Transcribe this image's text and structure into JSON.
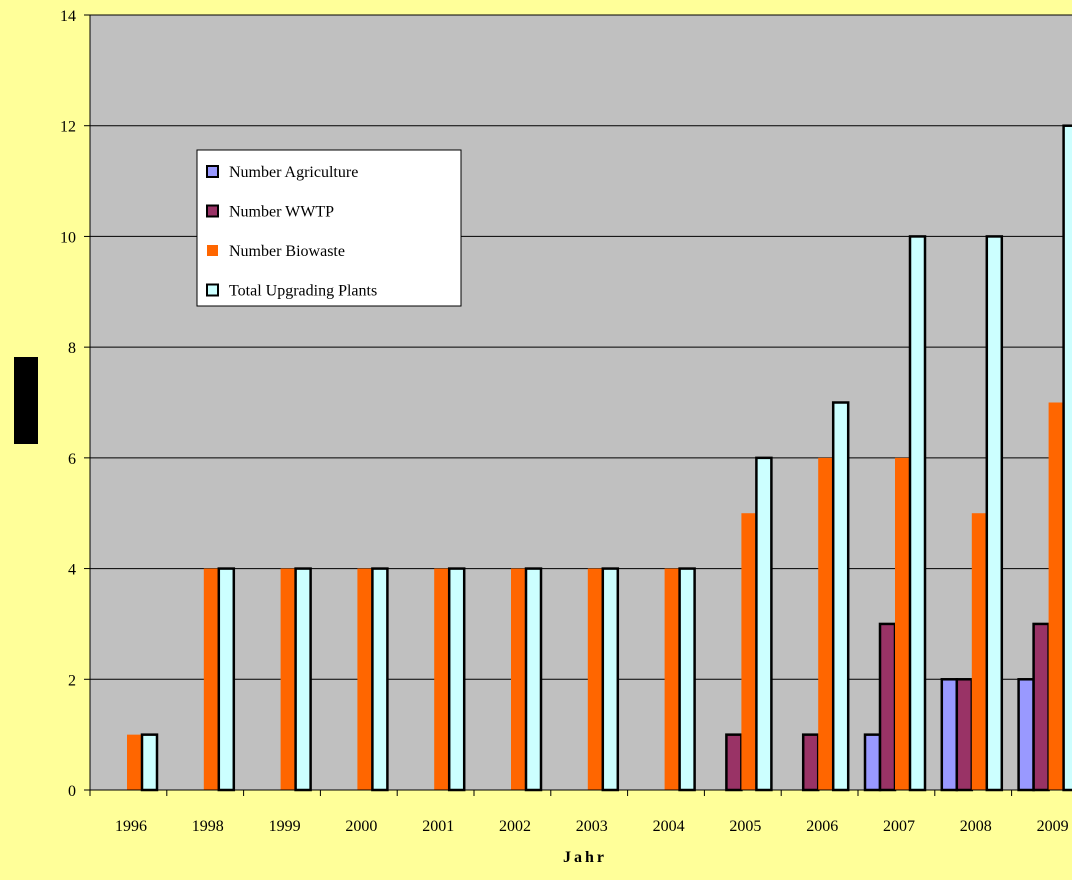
{
  "chart_data": {
    "type": "bar",
    "title": "",
    "xlabel": "Jahr",
    "ylabel": "",
    "ylim": [
      0,
      14
    ],
    "yticks": [
      0,
      2,
      4,
      6,
      8,
      10,
      12,
      14
    ],
    "grid": true,
    "legend_position": "upper-left",
    "categories": [
      "1996",
      "1998",
      "1999",
      "2000",
      "2001",
      "2002",
      "2003",
      "2004",
      "2005",
      "2006",
      "2007",
      "2008",
      "2009"
    ],
    "series": [
      {
        "name": "Number Agriculture",
        "color": "#9999FF",
        "outlined": true,
        "values": [
          0,
          0,
          0,
          0,
          0,
          0,
          0,
          0,
          0,
          0,
          1,
          2,
          2
        ]
      },
      {
        "name": "Number WWTP",
        "color": "#993366",
        "outlined": true,
        "values": [
          0,
          0,
          0,
          0,
          0,
          0,
          0,
          0,
          1,
          1,
          3,
          2,
          3
        ]
      },
      {
        "name": "Number Biowaste",
        "color": "#FF6600",
        "outlined": false,
        "values": [
          1,
          4,
          4,
          4,
          4,
          4,
          4,
          4,
          5,
          6,
          6,
          5,
          7
        ]
      },
      {
        "name": "Total Upgrading Plants",
        "color": "#CCFFFF",
        "outlined": true,
        "values": [
          1,
          4,
          4,
          4,
          4,
          4,
          4,
          4,
          6,
          7,
          10,
          10,
          12
        ]
      }
    ]
  }
}
